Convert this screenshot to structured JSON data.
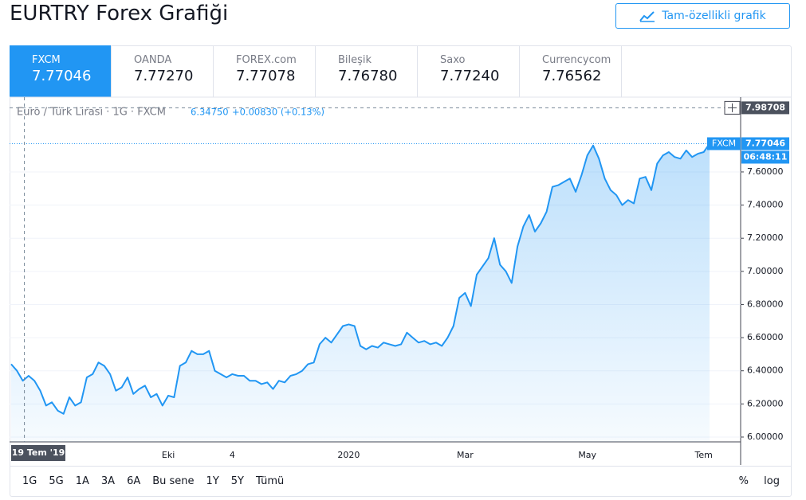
{
  "header": {
    "title": "EURTRY Forex Grafiği",
    "button": "Tam-özellikli grafik"
  },
  "tabs": [
    {
      "name": "FXCM",
      "price": "7.77046"
    },
    {
      "name": "OANDA",
      "price": "7.77270"
    },
    {
      "name": "FOREX.com",
      "price": "7.77078"
    },
    {
      "name": "Bileşik",
      "price": "7.76780"
    },
    {
      "name": "Saxo",
      "price": "7.77240"
    },
    {
      "name": "Currencycom",
      "price": "7.76562"
    }
  ],
  "chart_data": {
    "type": "area",
    "legend_title": "Euro / Türk Lirası · 1G · FXCM",
    "legend_price": "6.34750",
    "legend_change": "+0.00830 (+0.13%)",
    "crosshair_label": "19 Tem '19",
    "crosshair_price": 7.98708,
    "countdown": "06:48:11",
    "categories": [
      null,
      null,
      null,
      null,
      null,
      null,
      null,
      null,
      null,
      null,
      null,
      null,
      null,
      null,
      null,
      null,
      null,
      null,
      null,
      null,
      null,
      null,
      null,
      null,
      null,
      null,
      null,
      "Eki",
      null,
      null,
      null,
      null,
      null,
      null,
      null,
      null,
      null,
      null,
      "4",
      null,
      null,
      null,
      null,
      null,
      null,
      null,
      null,
      null,
      null,
      null,
      null,
      null,
      null,
      null,
      null,
      null,
      null,
      null,
      "2020",
      null,
      null,
      null,
      null,
      null,
      null,
      null,
      null,
      null,
      null,
      null,
      null,
      null,
      null,
      null,
      null,
      null,
      null,
      null,
      "Mar",
      null,
      null,
      null,
      null,
      null,
      null,
      null,
      null,
      null,
      null,
      null,
      null,
      null,
      null,
      null,
      null,
      null,
      null,
      null,
      null,
      "May",
      null,
      null,
      null,
      null,
      null,
      null,
      null,
      null,
      null,
      null,
      null,
      null,
      null,
      null,
      null,
      null,
      null,
      null,
      null,
      "Tem",
      null
    ],
    "series": [
      {
        "name": "FXCM",
        "color": "#2196f3",
        "values": [
          6.44,
          6.4,
          6.34,
          6.37,
          6.34,
          6.28,
          6.19,
          6.21,
          6.16,
          6.14,
          6.24,
          6.19,
          6.21,
          6.36,
          6.38,
          6.45,
          6.43,
          6.38,
          6.28,
          6.3,
          6.36,
          6.26,
          6.29,
          6.31,
          6.24,
          6.26,
          6.19,
          6.25,
          6.24,
          6.43,
          6.45,
          6.52,
          6.5,
          6.5,
          6.52,
          6.4,
          6.38,
          6.36,
          6.38,
          6.37,
          6.37,
          6.34,
          6.34,
          6.32,
          6.33,
          6.29,
          6.34,
          6.33,
          6.37,
          6.38,
          6.4,
          6.44,
          6.45,
          6.56,
          6.6,
          6.57,
          6.62,
          6.67,
          6.68,
          6.67,
          6.55,
          6.53,
          6.55,
          6.54,
          6.57,
          6.56,
          6.55,
          6.56,
          6.63,
          6.6,
          6.57,
          6.58,
          6.56,
          6.57,
          6.55,
          6.6,
          6.67,
          6.84,
          6.87,
          6.79,
          6.98,
          7.03,
          7.08,
          7.2,
          7.04,
          7.0,
          6.93,
          7.15,
          7.27,
          7.34,
          7.24,
          7.29,
          7.36,
          7.51,
          7.52,
          7.54,
          7.56,
          7.48,
          7.58,
          7.7,
          7.76,
          7.68,
          7.56,
          7.49,
          7.46,
          7.4,
          7.43,
          7.41,
          7.56,
          7.57,
          7.49,
          7.65,
          7.7,
          7.72,
          7.69,
          7.68,
          7.73,
          7.69,
          7.71,
          7.72,
          7.77046
        ]
      }
    ],
    "ylim": [
      5.971,
      8.037
    ],
    "yticks": [
      {
        "value": 6,
        "label": "6.00000"
      },
      {
        "value": 6.2,
        "label": "6.20000"
      },
      {
        "value": 6.4,
        "label": "6.40000"
      },
      {
        "value": 6.6,
        "label": "6.60000"
      },
      {
        "value": 6.8,
        "label": "6.80000"
      },
      {
        "value": 7,
        "label": "7.00000"
      },
      {
        "value": 7.2,
        "label": "7.20000"
      },
      {
        "value": 7.4,
        "label": "7.40000"
      },
      {
        "value": 7.6,
        "label": "7.60000"
      }
    ],
    "grid": true
  },
  "toolbar": {
    "ranges": [
      "1G",
      "5G",
      "1A",
      "3A",
      "6A",
      "Bu sene",
      "1Y",
      "5Y",
      "Tümü"
    ],
    "percent": "%",
    "log": "log"
  }
}
